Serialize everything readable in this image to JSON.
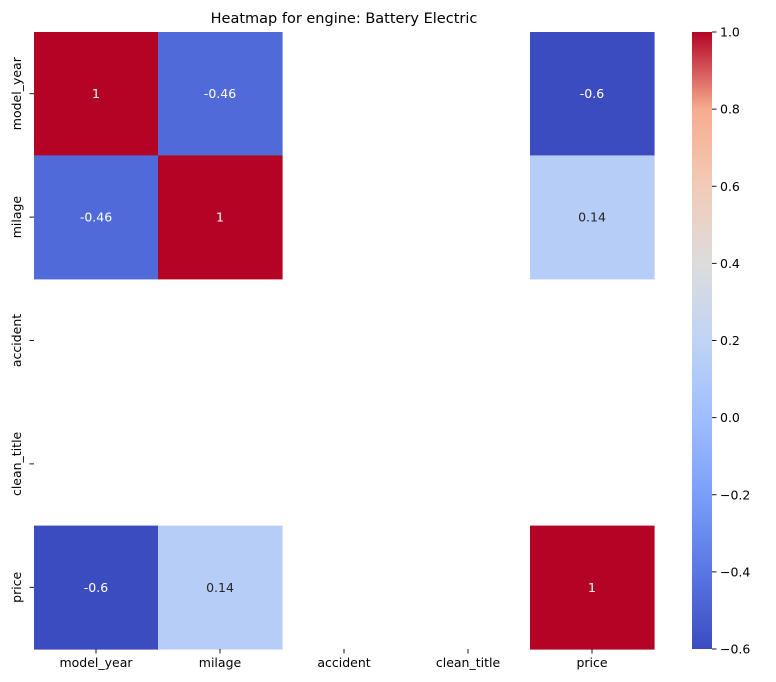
{
  "chart_data": {
    "type": "heatmap",
    "title": "Heatmap for engine: Battery Electric",
    "xlabel": "",
    "ylabel": "",
    "x_categories": [
      "model_year",
      "milage",
      "accident",
      "clean_title",
      "price"
    ],
    "y_categories": [
      "model_year",
      "milage",
      "accident",
      "clean_title",
      "price"
    ],
    "values": [
      [
        1,
        -0.46,
        null,
        null,
        -0.6
      ],
      [
        -0.46,
        1,
        null,
        null,
        0.14
      ],
      [
        null,
        null,
        null,
        null,
        null
      ],
      [
        null,
        null,
        null,
        null,
        null
      ],
      [
        -0.6,
        0.14,
        null,
        null,
        1
      ]
    ],
    "annotations": [
      [
        "1",
        "-0.46",
        "",
        "",
        "-0.6"
      ],
      [
        "-0.46",
        "1",
        "",
        "",
        "0.14"
      ],
      [
        "",
        "",
        "",
        "",
        ""
      ],
      [
        "",
        "",
        "",
        "",
        ""
      ],
      [
        "-0.6",
        "0.14",
        "",
        "",
        "1"
      ]
    ],
    "colormap": "coolwarm",
    "vmin": -0.6,
    "vmax": 1.0,
    "colorbar_ticks": [
      -0.6,
      -0.4,
      -0.2,
      0.0,
      0.2,
      0.4,
      0.6,
      0.8,
      1.0
    ],
    "colorbar_tick_labels": [
      "−0.6",
      "−0.4",
      "−0.2",
      "0.0",
      "0.2",
      "0.4",
      "0.6",
      "0.8",
      "1.0"
    ],
    "grid": false
  }
}
